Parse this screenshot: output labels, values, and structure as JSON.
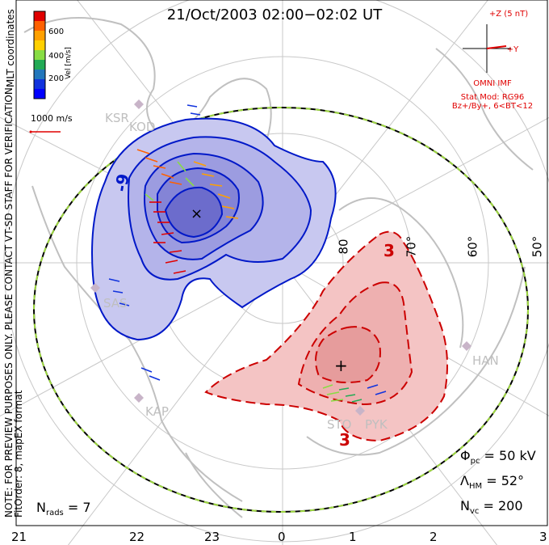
{
  "title": "21/Oct/2003 02:00−02:02 UT",
  "side_note_line1": "NOTE: FOR PREVIEW PURPOSES ONLY. PLEASE CONTACT VT-SD STAFF FOR VERIFICATION.",
  "side_note_line2": "FitOrder: 8, mapEX format",
  "mlt_label": "MLT coordinates",
  "colorbar": {
    "title": "Vel [m/s]",
    "ticks": [
      "600",
      "400",
      "200"
    ],
    "colors": [
      "#e00000",
      "#ff6000",
      "#ffa000",
      "#ffd000",
      "#88dd44",
      "#22aa55",
      "#2277bb",
      "#1133dd",
      "#0000ff"
    ]
  },
  "scale_label": "1000 m/s",
  "imf": {
    "top_label": "+Z (5 nT)",
    "y_label": "+Y",
    "omni": "OMNI IMF",
    "model": "Stat Mod: RG96",
    "conditions": "Bz+/By+, 6<BT<12"
  },
  "stats": {
    "phi_symbol": "Φ",
    "phi_sub": "pc",
    "phi_value": "= 50 kV",
    "lambda_symbol": "Λ",
    "lambda_sub": "HM",
    "lambda_value": "= 52°",
    "nvc_symbol": "N",
    "nvc_sub": "vc",
    "nvc_value": "= 200",
    "nrads_symbol": "N",
    "nrads_sub": "rads",
    "nrads_value": "= 7"
  },
  "xaxis_ticks": [
    "21",
    "22",
    "23",
    "0",
    "1",
    "2",
    "3"
  ],
  "lat_labels": [
    "80",
    "70°",
    "60°",
    "50°"
  ],
  "contour_labels": [
    "-9",
    "3",
    "3"
  ],
  "sites": [
    "KSR",
    "KOD",
    "SAS",
    "KAP",
    "HAN",
    "STO",
    "PYK"
  ],
  "colors": {
    "negative_contour": "#0018c8",
    "positive_contour": "#cc0000",
    "negative_fill": "#c8c8f0",
    "positive_fill": "#f4c4c4",
    "map": "#c8c8c8",
    "imf": "#e00000"
  }
}
